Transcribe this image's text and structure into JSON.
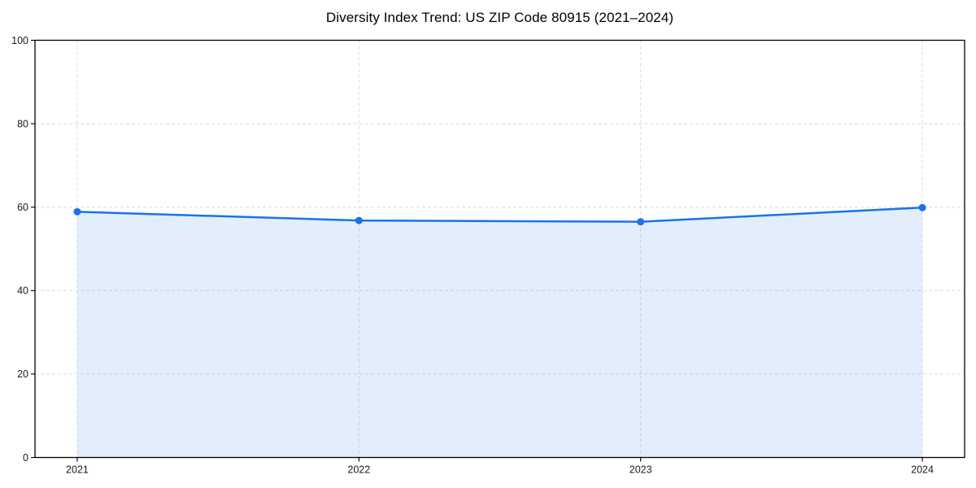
{
  "figure": {
    "background": "#ffffff"
  },
  "chart_data": {
    "type": "line",
    "title": "Diversity Index Trend: US ZIP Code 80915 (2021–2024)",
    "x": [
      2021,
      2022,
      2023,
      2024
    ],
    "series": [
      {
        "name": "Diversity Index",
        "values": [
          58.9,
          56.8,
          56.5,
          59.9
        ]
      }
    ],
    "xlabel": "",
    "ylabel": "",
    "xlim": [
      2020.85,
      2024.15
    ],
    "ylim": [
      0,
      100
    ],
    "xtick_labels": [
      "2021",
      "2022",
      "2023",
      "2024"
    ],
    "xticks": [
      2021,
      2022,
      2023,
      2024
    ],
    "yticks": [
      0,
      20,
      40,
      60,
      80,
      100
    ],
    "grid": true,
    "grid_style": "dashed",
    "legend": false,
    "annotations": [],
    "style": {
      "line_color": "#1a73e8",
      "line_width": 2.5,
      "marker": "circle",
      "marker_radius": 4.5,
      "area_fill": true,
      "area_color": "#1a73e8",
      "area_opacity": 0.12,
      "grid_color": "#dcdcdc",
      "spine_color": "#000000",
      "tick_color": "#000000",
      "tick_label_color": "#1a1a1a",
      "title_color": "#000000",
      "plot_background": "#ffffff"
    }
  }
}
